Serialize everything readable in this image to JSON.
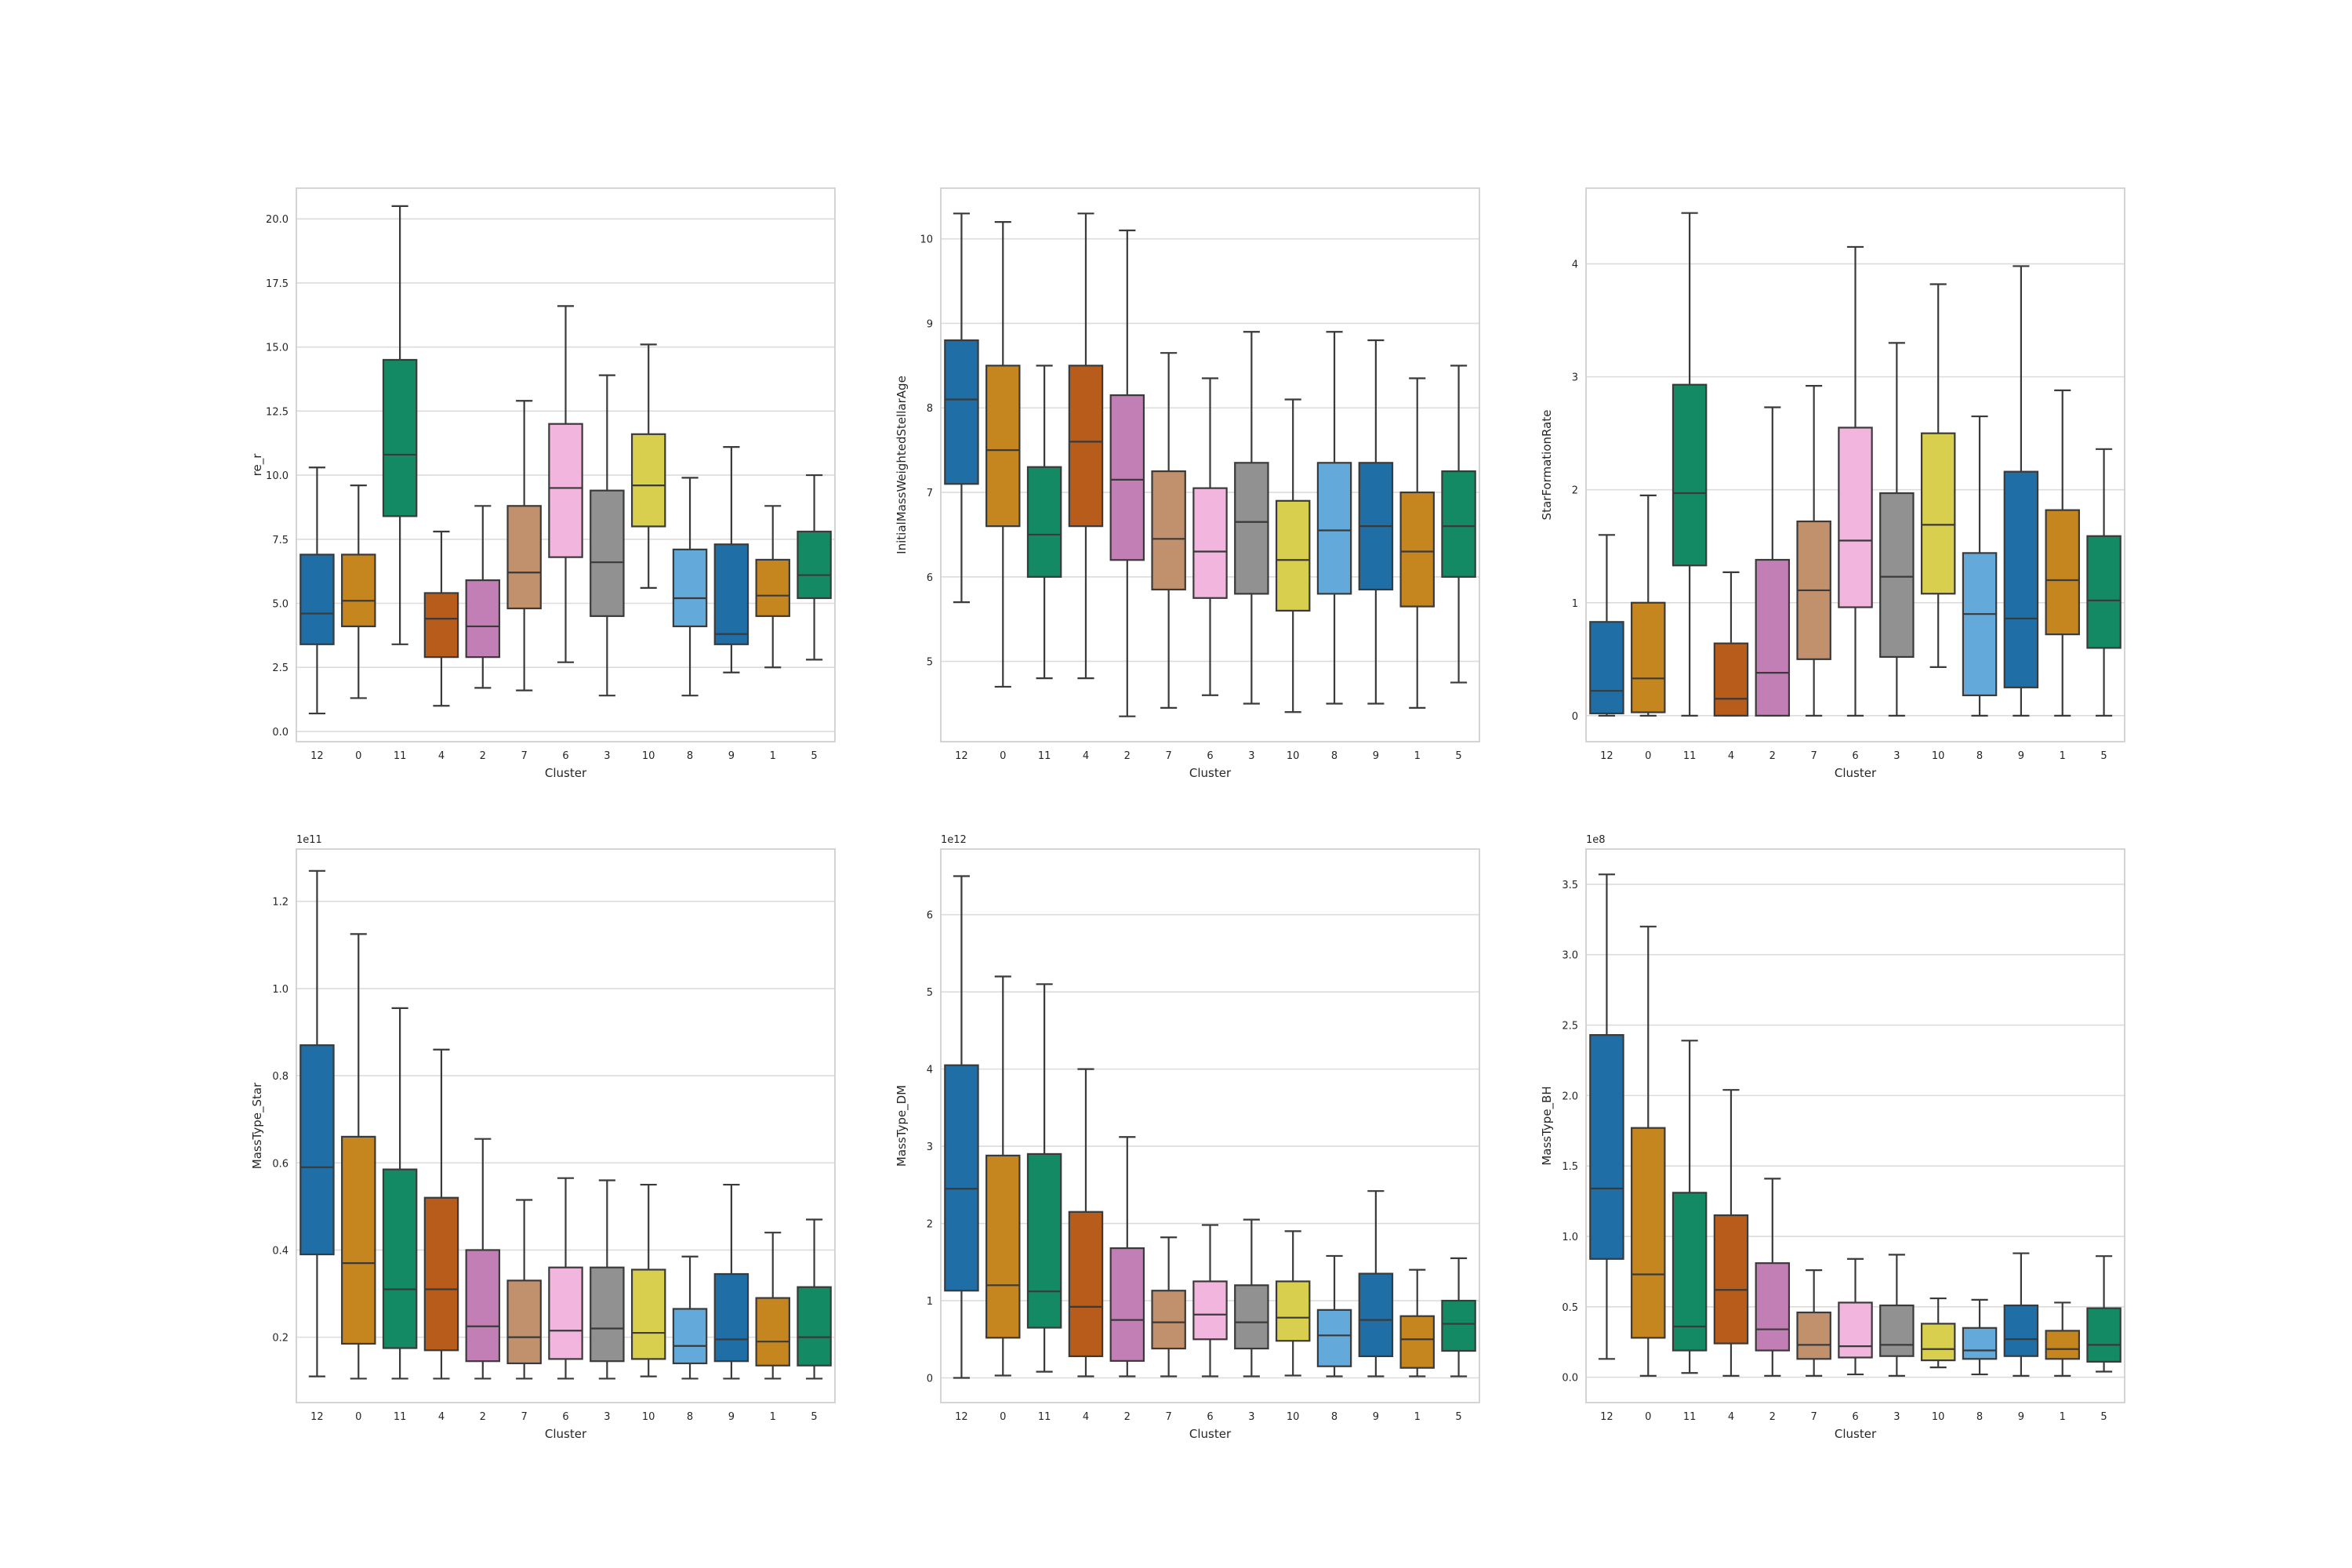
{
  "figure": {
    "xlabel": "Cluster",
    "categories": [
      "12",
      "0",
      "11",
      "4",
      "2",
      "7",
      "6",
      "3",
      "10",
      "8",
      "9",
      "1",
      "5"
    ],
    "palette": [
      "#1f6fa6",
      "#c6861f",
      "#138a64",
      "#b85c1c",
      "#c27fb5",
      "#c0916c",
      "#f2b6de",
      "#919191",
      "#d8cf4e",
      "#63aadb",
      "#1f6fa6",
      "#c6861f",
      "#138a64"
    ],
    "grid": true
  },
  "chart_data": [
    {
      "type": "boxplot",
      "title": "",
      "xlabel": "Cluster",
      "ylabel": "re_r",
      "offset_text": "",
      "ylim": [
        -0.4,
        21.2
      ],
      "yticks": [
        0,
        2.5,
        5,
        7.5,
        10,
        12.5,
        15,
        17.5,
        20
      ],
      "ytick_labels": [
        "0.0",
        "2.5",
        "5.0",
        "7.5",
        "10.0",
        "12.5",
        "15.0",
        "17.5",
        "20.0"
      ],
      "categories": [
        "12",
        "0",
        "11",
        "4",
        "2",
        "7",
        "6",
        "3",
        "10",
        "8",
        "9",
        "1",
        "5"
      ],
      "boxes": [
        {
          "min": 0.7,
          "q1": 3.4,
          "median": 4.6,
          "q3": 6.9,
          "max": 10.3
        },
        {
          "min": 1.3,
          "q1": 4.1,
          "median": 5.1,
          "q3": 6.9,
          "max": 9.6
        },
        {
          "min": 3.4,
          "q1": 8.4,
          "median": 10.8,
          "q3": 14.5,
          "max": 20.5
        },
        {
          "min": 1.0,
          "q1": 2.9,
          "median": 4.4,
          "q3": 5.4,
          "max": 7.8
        },
        {
          "min": 1.7,
          "q1": 2.9,
          "median": 4.1,
          "q3": 5.9,
          "max": 8.8
        },
        {
          "min": 1.6,
          "q1": 4.8,
          "median": 6.2,
          "q3": 8.8,
          "max": 12.9
        },
        {
          "min": 2.7,
          "q1": 6.8,
          "median": 9.5,
          "q3": 12.0,
          "max": 16.6
        },
        {
          "min": 1.4,
          "q1": 4.5,
          "median": 6.6,
          "q3": 9.4,
          "max": 13.9
        },
        {
          "min": 5.6,
          "q1": 8.0,
          "median": 9.6,
          "q3": 11.6,
          "max": 15.1
        },
        {
          "min": 1.4,
          "q1": 4.1,
          "median": 5.2,
          "q3": 7.1,
          "max": 9.9
        },
        {
          "min": 2.3,
          "q1": 3.4,
          "median": 3.8,
          "q3": 7.3,
          "max": 11.1
        },
        {
          "min": 2.5,
          "q1": 4.5,
          "median": 5.3,
          "q3": 6.7,
          "max": 8.8
        },
        {
          "min": 2.8,
          "q1": 5.2,
          "median": 6.1,
          "q3": 7.8,
          "max": 10.0
        }
      ]
    },
    {
      "type": "boxplot",
      "title": "",
      "xlabel": "Cluster",
      "ylabel": "InitialMassWeightedStellarAge",
      "offset_text": "",
      "ylim": [
        4.05,
        10.6
      ],
      "yticks": [
        5,
        6,
        7,
        8,
        9,
        10
      ],
      "ytick_labels": [
        "5",
        "6",
        "7",
        "8",
        "9",
        "10"
      ],
      "categories": [
        "12",
        "0",
        "11",
        "4",
        "2",
        "7",
        "6",
        "3",
        "10",
        "8",
        "9",
        "1",
        "5"
      ],
      "boxes": [
        {
          "min": 5.7,
          "q1": 7.1,
          "median": 8.1,
          "q3": 8.8,
          "max": 10.3
        },
        {
          "min": 4.7,
          "q1": 6.6,
          "median": 7.5,
          "q3": 8.5,
          "max": 10.2
        },
        {
          "min": 4.8,
          "q1": 6.0,
          "median": 6.5,
          "q3": 7.3,
          "max": 8.5
        },
        {
          "min": 4.8,
          "q1": 6.6,
          "median": 7.6,
          "q3": 8.5,
          "max": 10.3
        },
        {
          "min": 4.35,
          "q1": 6.2,
          "median": 7.15,
          "q3": 8.15,
          "max": 10.1
        },
        {
          "min": 4.45,
          "q1": 5.85,
          "median": 6.45,
          "q3": 7.25,
          "max": 8.65
        },
        {
          "min": 4.6,
          "q1": 5.75,
          "median": 6.3,
          "q3": 7.05,
          "max": 8.35
        },
        {
          "min": 4.5,
          "q1": 5.8,
          "median": 6.65,
          "q3": 7.35,
          "max": 8.9
        },
        {
          "min": 4.4,
          "q1": 5.6,
          "median": 6.2,
          "q3": 6.9,
          "max": 8.1
        },
        {
          "min": 4.5,
          "q1": 5.8,
          "median": 6.55,
          "q3": 7.35,
          "max": 8.9
        },
        {
          "min": 4.5,
          "q1": 5.85,
          "median": 6.6,
          "q3": 7.35,
          "max": 8.8
        },
        {
          "min": 4.45,
          "q1": 5.65,
          "median": 6.3,
          "q3": 7.0,
          "max": 8.35
        },
        {
          "min": 4.75,
          "q1": 6.0,
          "median": 6.6,
          "q3": 7.25,
          "max": 8.5
        }
      ]
    },
    {
      "type": "boxplot",
      "title": "",
      "xlabel": "Cluster",
      "ylabel": "StarFormationRate",
      "offset_text": "",
      "ylim": [
        -0.23,
        4.67
      ],
      "yticks": [
        0,
        1,
        2,
        3,
        4
      ],
      "ytick_labels": [
        "0",
        "1",
        "2",
        "3",
        "4"
      ],
      "categories": [
        "12",
        "0",
        "11",
        "4",
        "2",
        "7",
        "6",
        "3",
        "10",
        "8",
        "9",
        "1",
        "5"
      ],
      "boxes": [
        {
          "min": 0.0,
          "q1": 0.02,
          "median": 0.22,
          "q3": 0.83,
          "max": 1.6
        },
        {
          "min": 0.0,
          "q1": 0.03,
          "median": 0.33,
          "q3": 1.0,
          "max": 1.95
        },
        {
          "min": 0.0,
          "q1": 1.33,
          "median": 1.97,
          "q3": 2.93,
          "max": 4.45
        },
        {
          "min": 0.0,
          "q1": 0.0,
          "median": 0.15,
          "q3": 0.64,
          "max": 1.27
        },
        {
          "min": 0.0,
          "q1": 0.0,
          "median": 0.38,
          "q3": 1.38,
          "max": 2.73
        },
        {
          "min": 0.0,
          "q1": 0.5,
          "median": 1.11,
          "q3": 1.72,
          "max": 2.92
        },
        {
          "min": 0.0,
          "q1": 0.96,
          "median": 1.55,
          "q3": 2.55,
          "max": 4.15
        },
        {
          "min": 0.0,
          "q1": 0.52,
          "median": 1.23,
          "q3": 1.97,
          "max": 3.3
        },
        {
          "min": 0.43,
          "q1": 1.08,
          "median": 1.69,
          "q3": 2.5,
          "max": 3.82
        },
        {
          "min": 0.0,
          "q1": 0.18,
          "median": 0.9,
          "q3": 1.44,
          "max": 2.65
        },
        {
          "min": 0.0,
          "q1": 0.25,
          "median": 0.86,
          "q3": 2.16,
          "max": 3.98
        },
        {
          "min": 0.0,
          "q1": 0.72,
          "median": 1.2,
          "q3": 1.82,
          "max": 2.88
        },
        {
          "min": 0.0,
          "q1": 0.6,
          "median": 1.02,
          "q3": 1.59,
          "max": 2.36
        }
      ]
    },
    {
      "type": "boxplot",
      "title": "",
      "xlabel": "Cluster",
      "ylabel": "MassType_Star",
      "offset_text": "1e11",
      "ylim": [
        0.05,
        1.32
      ],
      "yticks": [
        0.2,
        0.4,
        0.6,
        0.8,
        1.0,
        1.2
      ],
      "ytick_labels": [
        "0.2",
        "0.4",
        "0.6",
        "0.8",
        "1.0",
        "1.2"
      ],
      "categories": [
        "12",
        "0",
        "11",
        "4",
        "2",
        "7",
        "6",
        "3",
        "10",
        "8",
        "9",
        "1",
        "5"
      ],
      "boxes": [
        {
          "min": 0.11,
          "q1": 0.39,
          "median": 0.59,
          "q3": 0.87,
          "max": 1.27
        },
        {
          "min": 0.105,
          "q1": 0.185,
          "median": 0.37,
          "q3": 0.66,
          "max": 1.125
        },
        {
          "min": 0.105,
          "q1": 0.175,
          "median": 0.31,
          "q3": 0.585,
          "max": 0.955
        },
        {
          "min": 0.105,
          "q1": 0.17,
          "median": 0.31,
          "q3": 0.52,
          "max": 0.86
        },
        {
          "min": 0.105,
          "q1": 0.145,
          "median": 0.225,
          "q3": 0.4,
          "max": 0.655
        },
        {
          "min": 0.105,
          "q1": 0.14,
          "median": 0.2,
          "q3": 0.33,
          "max": 0.515
        },
        {
          "min": 0.105,
          "q1": 0.15,
          "median": 0.215,
          "q3": 0.36,
          "max": 0.565
        },
        {
          "min": 0.105,
          "q1": 0.145,
          "median": 0.22,
          "q3": 0.36,
          "max": 0.56
        },
        {
          "min": 0.11,
          "q1": 0.15,
          "median": 0.21,
          "q3": 0.355,
          "max": 0.55
        },
        {
          "min": 0.105,
          "q1": 0.14,
          "median": 0.18,
          "q3": 0.265,
          "max": 0.385
        },
        {
          "min": 0.105,
          "q1": 0.145,
          "median": 0.195,
          "q3": 0.345,
          "max": 0.55
        },
        {
          "min": 0.105,
          "q1": 0.135,
          "median": 0.19,
          "q3": 0.29,
          "max": 0.44
        },
        {
          "min": 0.105,
          "q1": 0.135,
          "median": 0.2,
          "q3": 0.315,
          "max": 0.47
        }
      ]
    },
    {
      "type": "boxplot",
      "title": "",
      "xlabel": "Cluster",
      "ylabel": "MassType_DM",
      "offset_text": "1e12",
      "ylim": [
        -0.32,
        6.85
      ],
      "yticks": [
        0,
        1,
        2,
        3,
        4,
        5,
        6
      ],
      "ytick_labels": [
        "0",
        "1",
        "2",
        "3",
        "4",
        "5",
        "6"
      ],
      "categories": [
        "12",
        "0",
        "11",
        "4",
        "2",
        "7",
        "6",
        "3",
        "10",
        "8",
        "9",
        "1",
        "5"
      ],
      "boxes": [
        {
          "min": 0.0,
          "q1": 1.13,
          "median": 2.45,
          "q3": 4.05,
          "max": 6.5
        },
        {
          "min": 0.03,
          "q1": 0.52,
          "median": 1.2,
          "q3": 2.88,
          "max": 5.2
        },
        {
          "min": 0.08,
          "q1": 0.65,
          "median": 1.12,
          "q3": 2.9,
          "max": 5.1
        },
        {
          "min": 0.02,
          "q1": 0.28,
          "median": 0.92,
          "q3": 2.15,
          "max": 4.0
        },
        {
          "min": 0.02,
          "q1": 0.22,
          "median": 0.75,
          "q3": 1.68,
          "max": 3.12
        },
        {
          "min": 0.02,
          "q1": 0.38,
          "median": 0.72,
          "q3": 1.13,
          "max": 1.82
        },
        {
          "min": 0.02,
          "q1": 0.5,
          "median": 0.82,
          "q3": 1.25,
          "max": 1.98
        },
        {
          "min": 0.02,
          "q1": 0.38,
          "median": 0.72,
          "q3": 1.2,
          "max": 2.05
        },
        {
          "min": 0.03,
          "q1": 0.48,
          "median": 0.78,
          "q3": 1.25,
          "max": 1.9
        },
        {
          "min": 0.02,
          "q1": 0.15,
          "median": 0.55,
          "q3": 0.88,
          "max": 1.58
        },
        {
          "min": 0.02,
          "q1": 0.28,
          "median": 0.75,
          "q3": 1.35,
          "max": 2.42
        },
        {
          "min": 0.02,
          "q1": 0.13,
          "median": 0.5,
          "q3": 0.8,
          "max": 1.4
        },
        {
          "min": 0.02,
          "q1": 0.35,
          "median": 0.7,
          "q3": 1.0,
          "max": 1.55
        }
      ]
    },
    {
      "type": "boxplot",
      "title": "",
      "xlabel": "Cluster",
      "ylabel": "MassType_BH",
      "offset_text": "1e8",
      "ylim": [
        -0.18,
        3.75
      ],
      "yticks": [
        0,
        0.5,
        1,
        1.5,
        2,
        2.5,
        3,
        3.5
      ],
      "ytick_labels": [
        "0.0",
        "0.5",
        "1.0",
        "1.5",
        "2.0",
        "2.5",
        "3.0",
        "3.5"
      ],
      "categories": [
        "12",
        "0",
        "11",
        "4",
        "2",
        "7",
        "6",
        "3",
        "10",
        "8",
        "9",
        "1",
        "5"
      ],
      "boxes": [
        {
          "min": 0.13,
          "q1": 0.84,
          "median": 1.34,
          "q3": 2.43,
          "max": 3.57
        },
        {
          "min": 0.01,
          "q1": 0.28,
          "median": 0.73,
          "q3": 1.77,
          "max": 3.2
        },
        {
          "min": 0.03,
          "q1": 0.19,
          "median": 0.36,
          "q3": 1.31,
          "max": 2.39
        },
        {
          "min": 0.01,
          "q1": 0.24,
          "median": 0.62,
          "q3": 1.15,
          "max": 2.04
        },
        {
          "min": 0.01,
          "q1": 0.19,
          "median": 0.34,
          "q3": 0.81,
          "max": 1.41
        },
        {
          "min": 0.01,
          "q1": 0.13,
          "median": 0.23,
          "q3": 0.46,
          "max": 0.76
        },
        {
          "min": 0.02,
          "q1": 0.14,
          "median": 0.22,
          "q3": 0.53,
          "max": 0.84
        },
        {
          "min": 0.01,
          "q1": 0.15,
          "median": 0.23,
          "q3": 0.51,
          "max": 0.87
        },
        {
          "min": 0.07,
          "q1": 0.12,
          "median": 0.2,
          "q3": 0.38,
          "max": 0.56
        },
        {
          "min": 0.02,
          "q1": 0.13,
          "median": 0.19,
          "q3": 0.35,
          "max": 0.55
        },
        {
          "min": 0.01,
          "q1": 0.15,
          "median": 0.27,
          "q3": 0.51,
          "max": 0.88
        },
        {
          "min": 0.01,
          "q1": 0.13,
          "median": 0.2,
          "q3": 0.33,
          "max": 0.53
        },
        {
          "min": 0.04,
          "q1": 0.11,
          "median": 0.23,
          "q3": 0.49,
          "max": 0.86
        }
      ]
    }
  ]
}
